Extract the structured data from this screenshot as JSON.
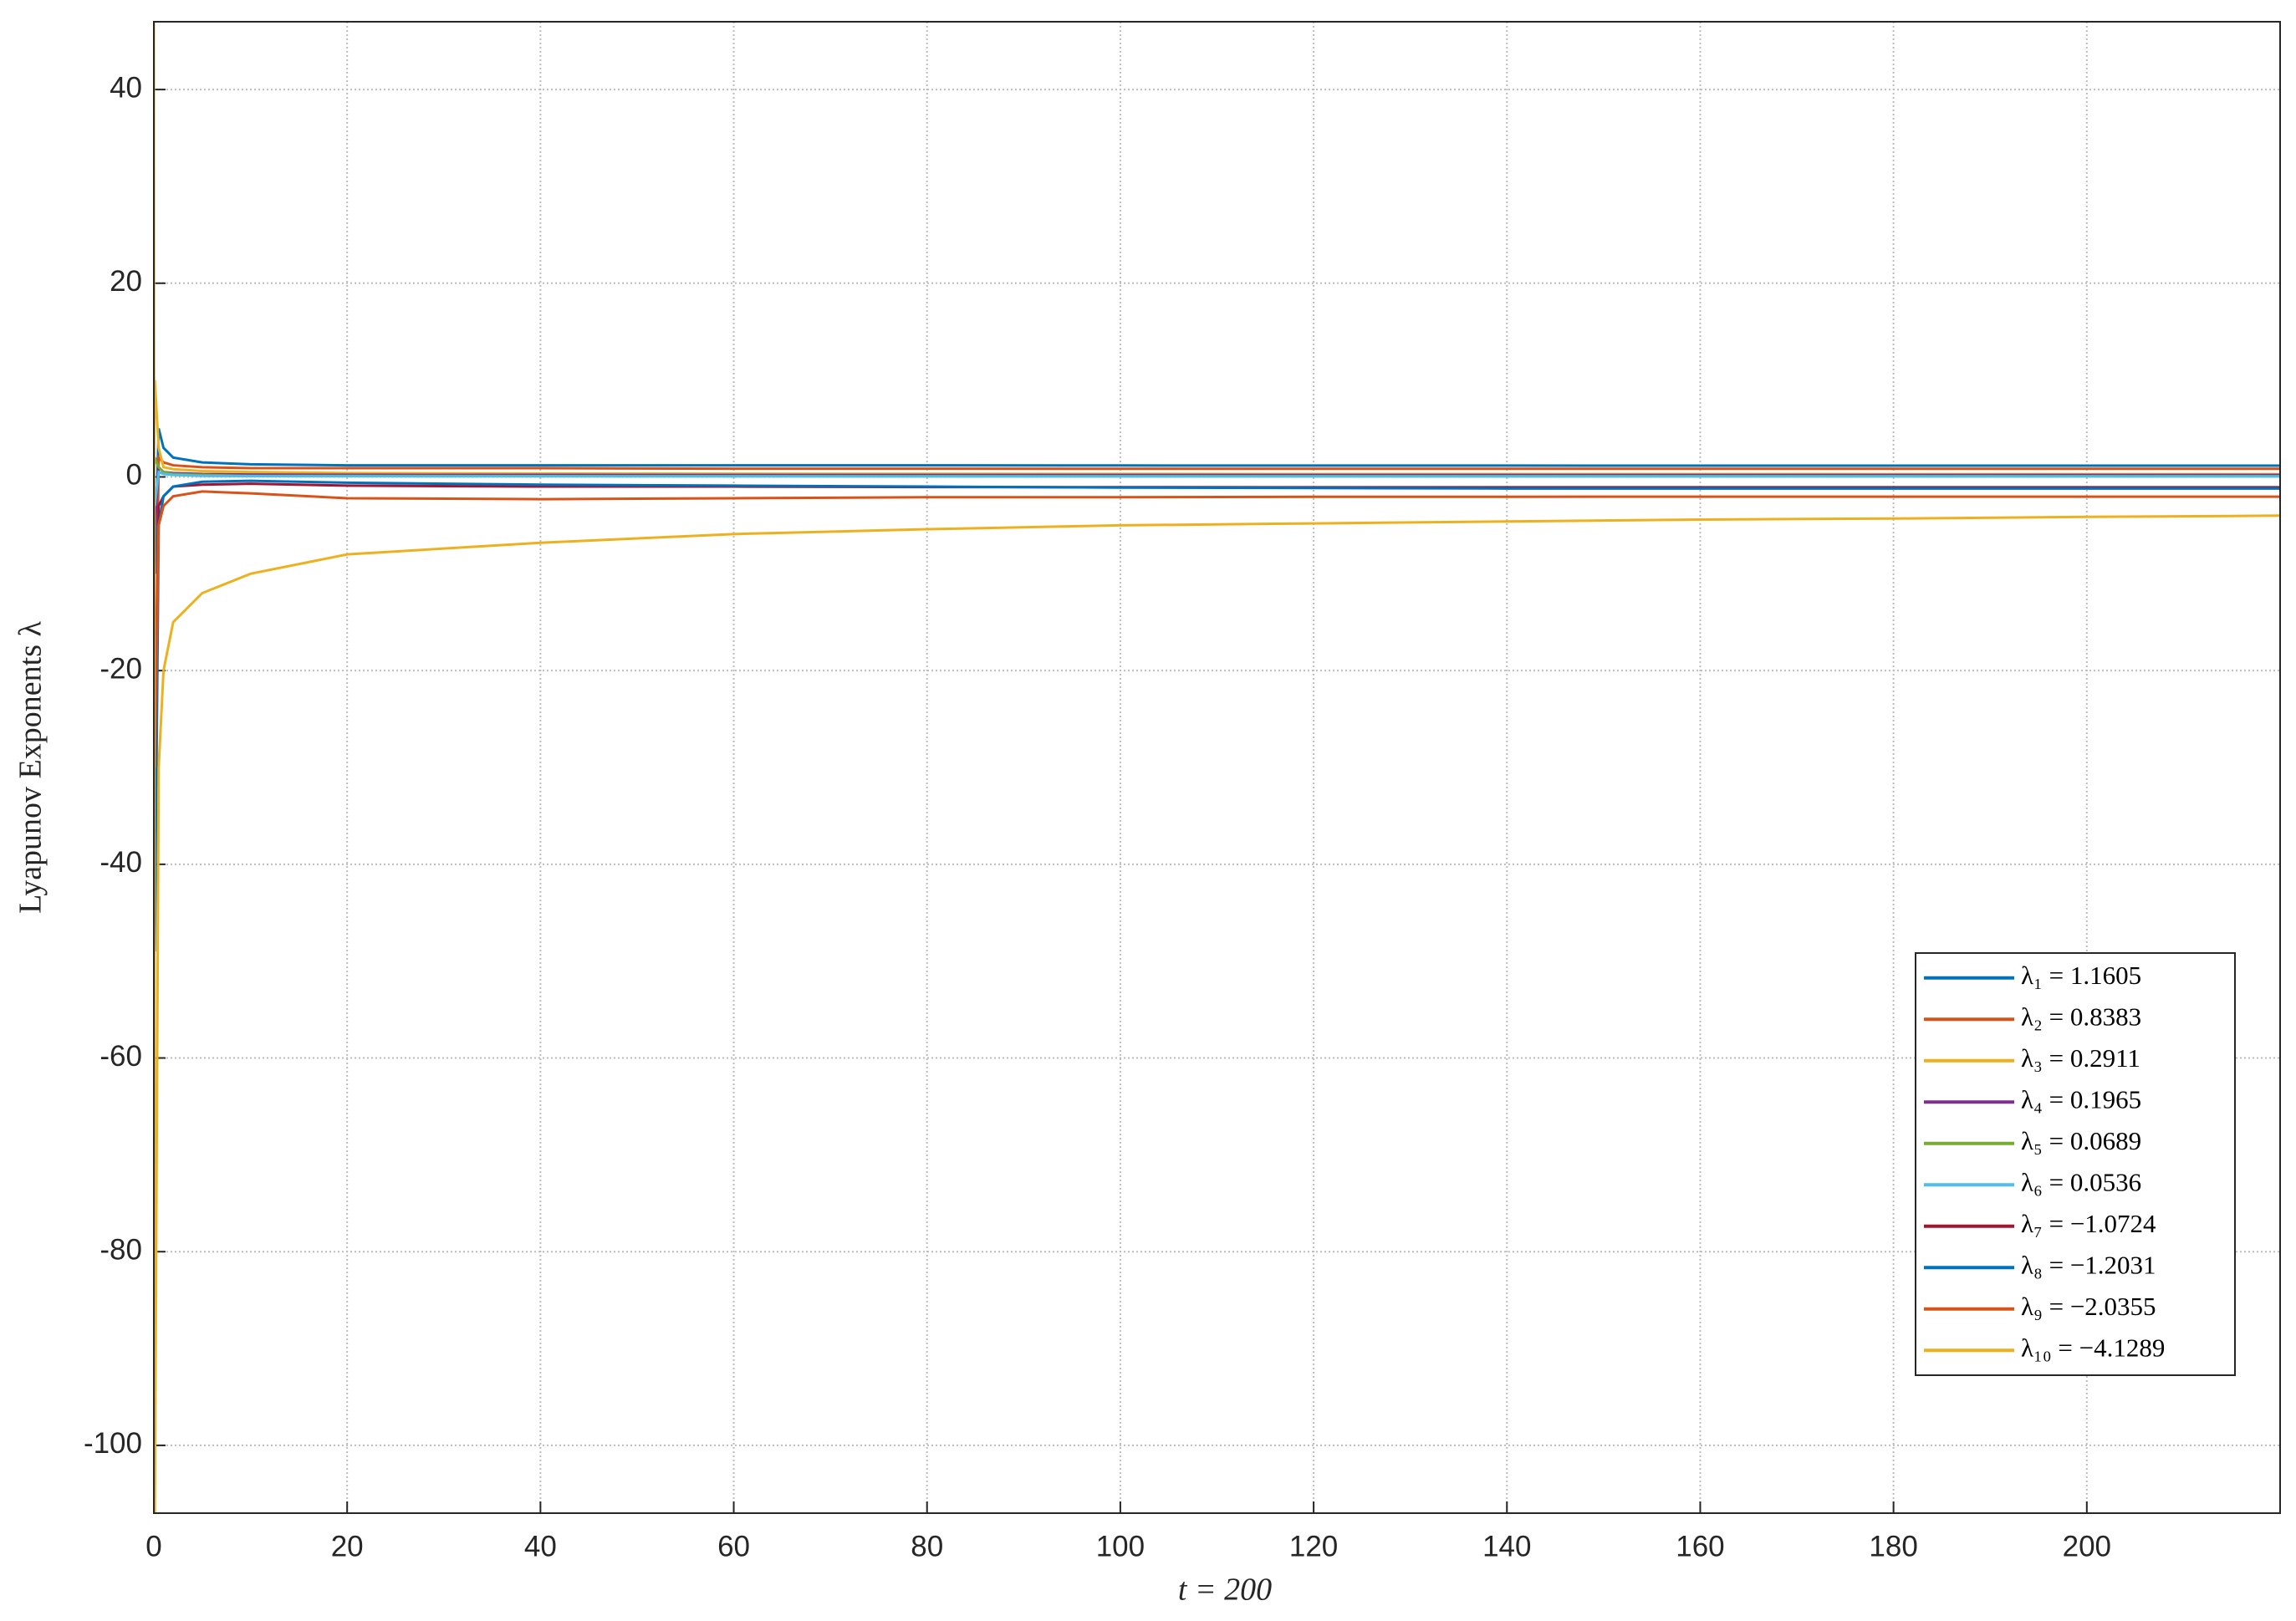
{
  "chart_data": {
    "type": "line",
    "xlabel": "t = 200",
    "ylabel": "Lyapunov Exponents λ",
    "x": [
      0,
      0.1,
      0.5,
      1,
      2,
      5,
      10,
      20,
      40,
      60,
      80,
      100,
      120,
      140,
      160,
      180,
      200,
      220
    ],
    "series": [
      {
        "name": "λ₁ = 1.1605",
        "color": "#0072BD",
        "values": [
          0,
          -10,
          5,
          3,
          2,
          1.5,
          1.3,
          1.2,
          1.2,
          1.2,
          1.2,
          1.18,
          1.17,
          1.17,
          1.16,
          1.16,
          1.16,
          1.16
        ]
      },
      {
        "name": "λ₂ = 0.8383",
        "color": "#D95319",
        "values": [
          0,
          -30,
          2,
          1.5,
          1.2,
          1.0,
          0.9,
          0.9,
          0.9,
          0.85,
          0.85,
          0.84,
          0.84,
          0.84,
          0.84,
          0.84,
          0.84,
          0.84
        ]
      },
      {
        "name": "λ₃ = 0.2911",
        "color": "#EDB120",
        "values": [
          0,
          10,
          3,
          1,
          0.8,
          0.6,
          0.5,
          0.4,
          0.35,
          0.33,
          0.32,
          0.31,
          0.3,
          0.3,
          0.3,
          0.29,
          0.29,
          0.29
        ]
      },
      {
        "name": "λ₄ = 0.1965",
        "color": "#7E2F8E",
        "values": [
          0,
          -5,
          1,
          0.5,
          0.4,
          0.3,
          0.25,
          0.22,
          0.21,
          0.2,
          0.2,
          0.2,
          0.2,
          0.2,
          0.2,
          0.2,
          0.2,
          0.2
        ]
      },
      {
        "name": "λ₅ = 0.0689",
        "color": "#77AC30",
        "values": [
          0,
          2,
          1,
          0.5,
          0.3,
          0.2,
          0.1,
          0.1,
          0.08,
          0.07,
          0.07,
          0.07,
          0.07,
          0.07,
          0.07,
          0.07,
          0.07,
          0.07
        ]
      },
      {
        "name": "λ₆ = 0.0536",
        "color": "#4DBEEE",
        "values": [
          0,
          -3,
          0.5,
          0.3,
          0.2,
          0.1,
          0.08,
          0.07,
          0.06,
          0.06,
          0.05,
          0.05,
          0.05,
          0.05,
          0.05,
          0.05,
          0.05,
          0.05
        ]
      },
      {
        "name": "λ₇ = −1.0724",
        "color": "#A2142F",
        "values": [
          0,
          -35,
          -3,
          -2,
          -1,
          -0.8,
          -0.7,
          -0.9,
          -1.0,
          -1.0,
          -1.05,
          -1.06,
          -1.07,
          -1.07,
          -1.07,
          -1.07,
          -1.07,
          -1.07
        ]
      },
      {
        "name": "λ₈ = −1.2031",
        "color": "#0072BD",
        "values": [
          0,
          -49,
          -5,
          -2,
          -1,
          -0.5,
          -0.4,
          -0.6,
          -0.8,
          -0.9,
          -1.0,
          -1.1,
          -1.15,
          -1.2,
          -1.2,
          -1.2,
          -1.2,
          -1.2
        ]
      },
      {
        "name": "λ₉ = −2.0355",
        "color": "#D95319",
        "values": [
          0,
          -30,
          -5,
          -3,
          -2,
          -1.5,
          -1.7,
          -2.2,
          -2.3,
          -2.2,
          -2.1,
          -2.1,
          -2.05,
          -2.05,
          -2.04,
          -2.04,
          -2.04,
          -2.04
        ]
      },
      {
        "name": "λ₁₀ = −4.1289",
        "color": "#EDB120",
        "values": [
          47,
          -107,
          -30,
          -20,
          -15,
          -12,
          -10,
          -8,
          -6.8,
          -5.9,
          -5.4,
          -5.0,
          -4.8,
          -4.6,
          -4.4,
          -4.3,
          -4.13,
          -4.0
        ]
      }
    ],
    "xlim": [
      0,
      220
    ],
    "xticks": [
      0,
      20,
      40,
      60,
      80,
      100,
      120,
      140,
      160,
      180,
      200
    ],
    "ylim": [
      -107,
      47
    ],
    "yticks": [
      -100,
      -80,
      -60,
      -40,
      -20,
      0,
      20,
      40
    ],
    "grid": true,
    "legend": "lower right"
  }
}
